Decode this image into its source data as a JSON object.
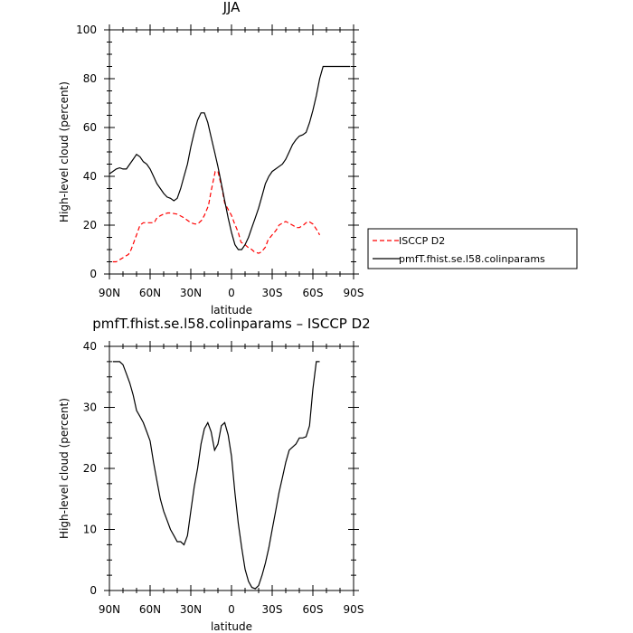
{
  "chart_data": [
    {
      "type": "line",
      "title": "JJA",
      "xlabel": "latitude",
      "ylabel": "High-level cloud (percent)",
      "xlim": [
        90,
        -90
      ],
      "ylim": [
        0,
        100
      ],
      "xticks": [
        90,
        60,
        30,
        0,
        -30,
        -60,
        -90
      ],
      "xtick_labels": [
        "90N",
        "60N",
        "30N",
        "0",
        "30S",
        "60S",
        "90S"
      ],
      "yticks": [
        0,
        20,
        40,
        60,
        80,
        100
      ],
      "ytick_labels": [
        "0",
        "20",
        "40",
        "60",
        "80",
        "100"
      ],
      "legend_position": "outside-right",
      "series": [
        {
          "name": "ISCCP D2",
          "color": "#ff0000",
          "dash": "dashed",
          "x": [
            87.5,
            85,
            82,
            79,
            76,
            74,
            72,
            70,
            67.5,
            65,
            62.5,
            60,
            57,
            55,
            52,
            50,
            47,
            45,
            40,
            35,
            30,
            27,
            25,
            22,
            20,
            17,
            15,
            12,
            10,
            7,
            5,
            2,
            0,
            -2,
            -5,
            -7,
            -10,
            -12,
            -15,
            -17,
            -20,
            -22,
            -25,
            -27,
            -30,
            -33,
            -35,
            -38,
            -40,
            -45,
            -48,
            -50,
            -53,
            -55,
            -57,
            -60,
            -63,
            -65
          ],
          "y": [
            5,
            5,
            6,
            7,
            8,
            10,
            13,
            16,
            20,
            21,
            21,
            21,
            21,
            23,
            24,
            24.5,
            25,
            25,
            24.5,
            23,
            21,
            20.5,
            20.5,
            22,
            24,
            28,
            34,
            42,
            42,
            35,
            29,
            26,
            24,
            21,
            17,
            13,
            12,
            11,
            10,
            9,
            8.5,
            9,
            11,
            14,
            16,
            18,
            20,
            21,
            21.5,
            20,
            19,
            19,
            20,
            21,
            21.5,
            20.5,
            18,
            16
          ]
        },
        {
          "name": "pmfT.fhist.se.l58.colinparams",
          "color": "#000000",
          "dash": "solid",
          "x": [
            90,
            87.5,
            85,
            82.5,
            80,
            77.5,
            75,
            72.5,
            70,
            67.5,
            65,
            62.5,
            60,
            57.5,
            55,
            52.5,
            50,
            47.5,
            45,
            42.5,
            40,
            37.5,
            35,
            32.5,
            30,
            27.5,
            25,
            22.5,
            20,
            17.5,
            15,
            12.5,
            10,
            7.5,
            5,
            2.5,
            0,
            -2.5,
            -5,
            -7.5,
            -10,
            -12.5,
            -15,
            -17.5,
            -20,
            -22.5,
            -25,
            -27.5,
            -30,
            -32.5,
            -35,
            -37.5,
            -40,
            -42.5,
            -45,
            -47.5,
            -50,
            -52.5,
            -55,
            -57.5,
            -60,
            -62.5,
            -65,
            -67.5,
            -70,
            -72.5,
            -75,
            -77.5,
            -80,
            -82.5,
            -85,
            -87.5
          ],
          "y": [
            41,
            42,
            43,
            43.5,
            43,
            43,
            45,
            47,
            49,
            48,
            46,
            45,
            43,
            40,
            37,
            35,
            33,
            31.5,
            31,
            30,
            31,
            35,
            40,
            45,
            52,
            58,
            63,
            66,
            66,
            62,
            56,
            50,
            44,
            37,
            30,
            23,
            17,
            12,
            10,
            10,
            12,
            15,
            19,
            23,
            27,
            32,
            37,
            40,
            42,
            43,
            44,
            45,
            47,
            50,
            53,
            55,
            56.5,
            57,
            58,
            62,
            67,
            73,
            80,
            85,
            85,
            85,
            85,
            85,
            85,
            85,
            85,
            85
          ]
        }
      ]
    },
    {
      "type": "line",
      "title": "pmfT.fhist.se.l58.colinparams – ISCCP D2",
      "xlabel": "latitude",
      "ylabel": "High-level cloud (percent)",
      "xlim": [
        90,
        -90
      ],
      "ylim": [
        0,
        40
      ],
      "xticks": [
        90,
        60,
        30,
        0,
        -30,
        -60,
        -90
      ],
      "xtick_labels": [
        "90N",
        "60N",
        "30N",
        "0",
        "30S",
        "60S",
        "90S"
      ],
      "yticks": [
        0,
        10,
        20,
        30,
        40
      ],
      "ytick_labels": [
        "0",
        "10",
        "20",
        "30",
        "40"
      ],
      "series": [
        {
          "color": "#000000",
          "dash": "solid",
          "x": [
            87.5,
            85,
            82.5,
            80,
            77.5,
            75,
            72.5,
            70,
            67.5,
            65,
            62.5,
            60,
            57.5,
            55,
            52.5,
            50,
            47.5,
            45,
            42.5,
            40,
            37.5,
            35,
            32.5,
            30,
            27.5,
            25,
            22.5,
            20,
            17.5,
            15,
            12.5,
            10,
            7.5,
            5,
            2.5,
            0,
            -2.5,
            -5,
            -7.5,
            -10,
            -12.5,
            -15,
            -17.5,
            -20,
            -22.5,
            -25,
            -27.5,
            -30,
            -32.5,
            -35,
            -37.5,
            -40,
            -42.5,
            -45,
            -47.5,
            -50,
            -52.5,
            -55,
            -57.5,
            -60,
            -62.5,
            -65
          ],
          "y": [
            37.5,
            37.5,
            37.5,
            37,
            35.5,
            34,
            32,
            29.5,
            28.5,
            27.5,
            26,
            24.5,
            21,
            18,
            15,
            13,
            11.5,
            10,
            9,
            8,
            8,
            7.5,
            9,
            13,
            17,
            20,
            24,
            26.5,
            27.5,
            26,
            23,
            24,
            27,
            27.5,
            25.5,
            22,
            16,
            11,
            7,
            3.5,
            1.5,
            0.5,
            0.3,
            0.8,
            2.5,
            4.5,
            7,
            10,
            13,
            16,
            18.5,
            21,
            23,
            23.5,
            24,
            25,
            25,
            25.2,
            27,
            33,
            37.5,
            37.5
          ]
        }
      ]
    }
  ]
}
